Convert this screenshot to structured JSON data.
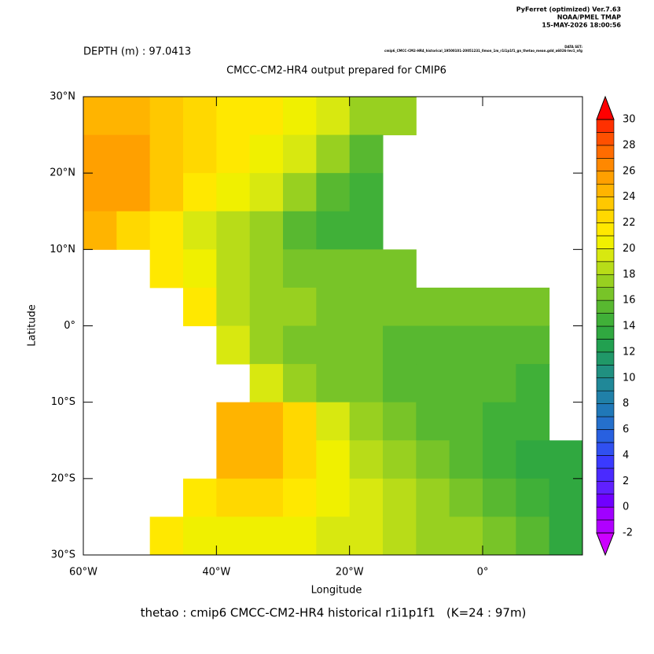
{
  "chart_data": {
    "type": "contour",
    "header": [
      "PyFerret (optimized) Ver.7.63",
      "NOAA/PMEL TMAP",
      "15-MAY-2026 18:00:56"
    ],
    "dataset_label": "DATA SET:",
    "dataset": "cmip6_CMCC-CM2-HR4_historical_19500101-20051231_0mon_1m_r1i1p1f1_gn_thetao_mean.gdd_a6026-lev1_nfg",
    "depth_label": "DEPTH (m) : 97.0413",
    "title": "CMCC-CM2-HR4 output prepared for CMIP6",
    "footer": "thetao : cmip6 CMCC-CM2-HR4 historical r1i1p1f1   (K=24 : 97m)",
    "x_label": "Longitude",
    "y_label": "Latitude",
    "xlim": [
      -60,
      15
    ],
    "ylim": [
      -30,
      30
    ],
    "xticks": [
      {
        "value": -60,
        "label": "60°W"
      },
      {
        "value": -40,
        "label": "40°W"
      },
      {
        "value": -20,
        "label": "20°W"
      },
      {
        "value": 0,
        "label": "0°"
      }
    ],
    "yticks": [
      {
        "value": 30,
        "label": "30°N"
      },
      {
        "value": 20,
        "label": "20°N"
      },
      {
        "value": 10,
        "label": "10°N"
      },
      {
        "value": 0,
        "label": "0°"
      },
      {
        "value": -10,
        "label": "10°S"
      },
      {
        "value": -20,
        "label": "20°S"
      },
      {
        "value": -30,
        "label": "30°S"
      }
    ],
    "x": [
      -57.5,
      -52.5,
      -47.5,
      -42.5,
      -37.5,
      -32.5,
      -27.5,
      -22.5,
      -17.5,
      -12.5,
      -7.5,
      -2.5,
      2.5,
      7.5,
      12.5
    ],
    "y": [
      27.5,
      22.5,
      17.5,
      12.5,
      7.5,
      2.5,
      -2.5,
      -7.5,
      -12.5,
      -17.5,
      -22.5,
      -27.5
    ],
    "values": [
      [
        24,
        24,
        23,
        22,
        21,
        21,
        20,
        19,
        17,
        17,
        null,
        null,
        null,
        null,
        null
      ],
      [
        25,
        25,
        23,
        22,
        21,
        20,
        19,
        17,
        15,
        null,
        null,
        null,
        null,
        null,
        null
      ],
      [
        25,
        25,
        23,
        21,
        20,
        19,
        17,
        15,
        14,
        null,
        null,
        null,
        null,
        null,
        null
      ],
      [
        24,
        22,
        21,
        19,
        18,
        17,
        15,
        14,
        14,
        null,
        null,
        null,
        null,
        null,
        null
      ],
      [
        null,
        null,
        21,
        20,
        18,
        17,
        16,
        16,
        16,
        16,
        null,
        null,
        null,
        null,
        null
      ],
      [
        null,
        null,
        null,
        21,
        18,
        17,
        17,
        16,
        16,
        16,
        16,
        16,
        16,
        16,
        null
      ],
      [
        null,
        null,
        null,
        null,
        19,
        17,
        16,
        16,
        16,
        15,
        15,
        15,
        15,
        15,
        null
      ],
      [
        null,
        null,
        null,
        null,
        null,
        19,
        17,
        16,
        16,
        15,
        15,
        15,
        15,
        14,
        null
      ],
      [
        null,
        null,
        null,
        null,
        24,
        24,
        22,
        19,
        17,
        16,
        15,
        15,
        14,
        14,
        null
      ],
      [
        null,
        null,
        null,
        null,
        24,
        24,
        22,
        20,
        18,
        17,
        16,
        15,
        14,
        13,
        13
      ],
      [
        null,
        null,
        null,
        21,
        22,
        22,
        21,
        20,
        19,
        18,
        17,
        16,
        15,
        14,
        13
      ],
      [
        null,
        null,
        21,
        20,
        20,
        20,
        20,
        19,
        19,
        18,
        17,
        17,
        16,
        15,
        13
      ]
    ],
    "clim": [
      -2,
      30
    ],
    "cticks": [
      -2,
      0,
      2,
      4,
      6,
      8,
      10,
      12,
      14,
      16,
      18,
      20,
      22,
      24,
      26,
      28,
      30
    ],
    "colors": [
      "#cc00ff",
      "#b000ff",
      "#a000ff",
      "#7000ff",
      "#6020ff",
      "#4a2aff",
      "#3a3aff",
      "#3050f0",
      "#2860e0",
      "#2570cc",
      "#2078b8",
      "#2080a8",
      "#208898",
      "#209080",
      "#209868",
      "#22a050",
      "#30a840",
      "#40b038",
      "#58b830",
      "#78c428",
      "#98d020",
      "#b8dc18",
      "#d8e810",
      "#f0f000",
      "#ffe800",
      "#ffd800",
      "#ffc800",
      "#ffb400",
      "#ffa000",
      "#ff8800",
      "#ff6c00",
      "#ff5000",
      "#ff3000",
      "#ff0000"
    ]
  }
}
